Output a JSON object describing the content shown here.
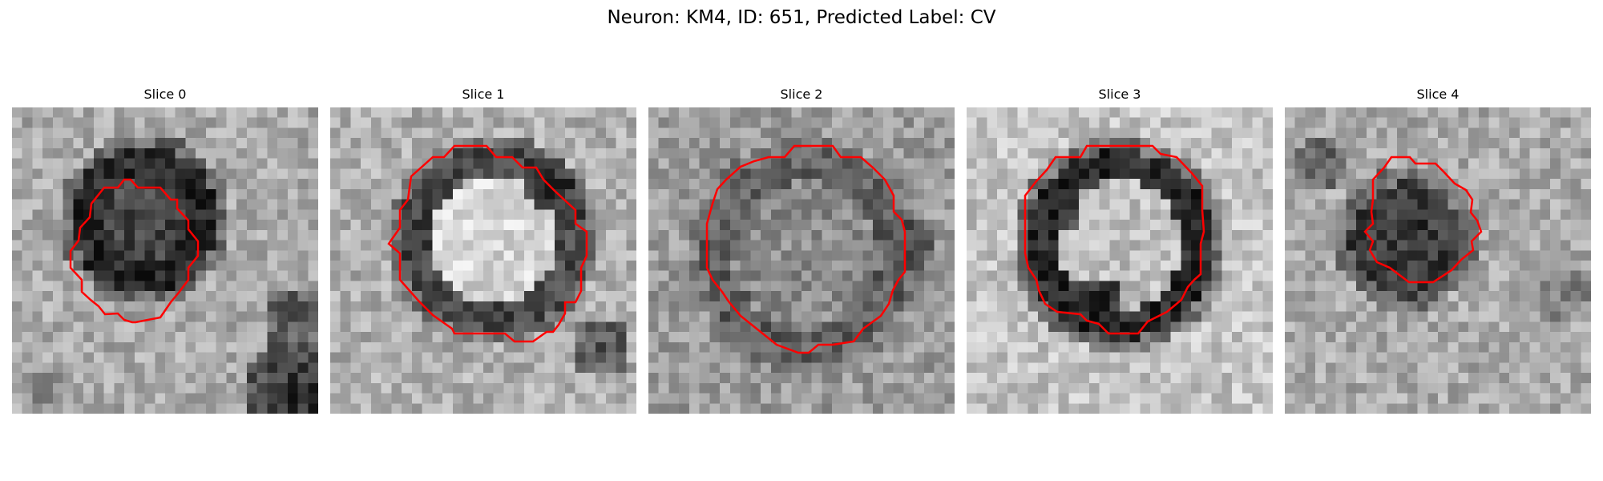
{
  "figure": {
    "title": "Neuron: KM4, ID: 651, Predicted Label: CV"
  },
  "colors": {
    "outline": "#ff0000",
    "colormap": "gray"
  },
  "panels": [
    {
      "title": "Slice 0",
      "image": "grayscale-patch-dark-ring-cell"
    },
    {
      "title": "Slice 1",
      "image": "grayscale-patch-bright-center-dark-rim"
    },
    {
      "title": "Slice 2",
      "image": "grayscale-patch-medium-gray-cell"
    },
    {
      "title": "Slice 3",
      "image": "grayscale-patch-dark-ring-bright-center"
    },
    {
      "title": "Slice 4",
      "image": "grayscale-patch-small-dark-cell"
    }
  ]
}
